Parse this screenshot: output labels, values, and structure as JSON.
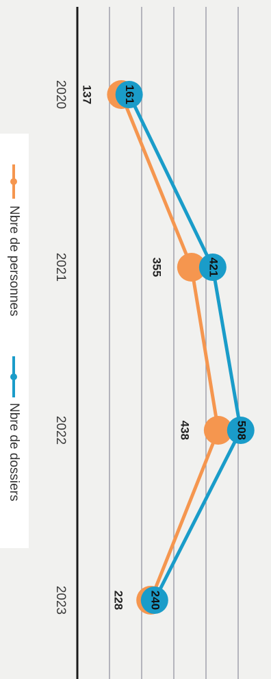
{
  "chart_data": {
    "type": "line",
    "categories": [
      "2020",
      "2021",
      "2022",
      "2023"
    ],
    "series": [
      {
        "name": "Nbre de personnes",
        "values": [
          137,
          355,
          438,
          228
        ],
        "color": "#f5964f"
      },
      {
        "name": "Nbre de dossiers",
        "values": [
          161,
          421,
          508,
          240
        ],
        "color": "#1a9cc9"
      }
    ],
    "ylim": [
      0,
      600
    ],
    "orientation": "rotated-90-clockwise",
    "grid": true,
    "legend_position": "bottom",
    "colors": {
      "grid": "#9a9aa6",
      "baseline": "#1a1a1a",
      "background": "#f1f1ef"
    }
  }
}
